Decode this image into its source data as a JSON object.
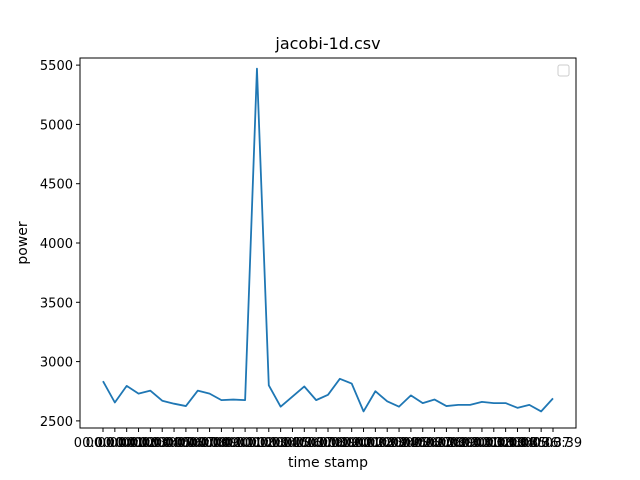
{
  "chart_data": {
    "type": "line",
    "title": "jacobi-1d.csv",
    "xlabel": "time stamp",
    "ylabel": "power",
    "ylim": [
      2440,
      5560
    ],
    "yticks": [
      2500,
      3000,
      3500,
      4000,
      4500,
      5000,
      5500
    ],
    "legend": {
      "location": "upper right",
      "entries": []
    },
    "grid": false,
    "colors": {
      "series": "#1f77b4",
      "axes": "#000000",
      "background": "#ffffff"
    },
    "x_tick_labels": {
      "first": "00:00:00",
      "last": "00:00:39",
      "note_overlapping": "labels overlap and are unreadable"
    },
    "series": [
      {
        "values": [
          2835,
          2655,
          2795,
          2730,
          2755,
          2670,
          2645,
          2625,
          2755,
          2730,
          2675,
          2680,
          2675,
          5470,
          2800,
          2620,
          2705,
          2790,
          2675,
          2720,
          2855,
          2815,
          2580,
          2750,
          2665,
          2620,
          2715,
          2650,
          2680,
          2625,
          2635,
          2635,
          2660,
          2650,
          2650,
          2610,
          2635,
          2580,
          2690
        ]
      }
    ]
  }
}
